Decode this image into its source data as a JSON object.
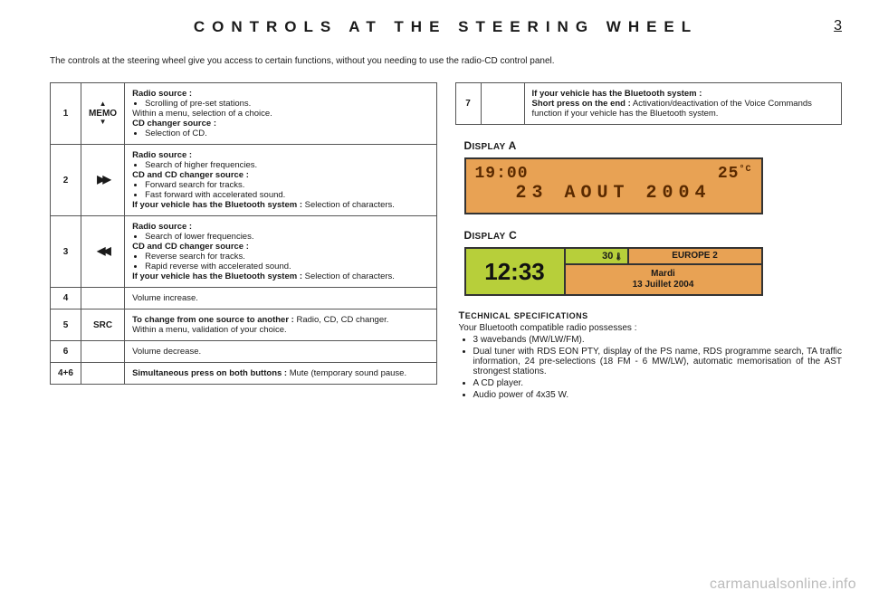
{
  "header": {
    "title": "CONTROLS AT THE STEERING WHEEL",
    "page_number": "3"
  },
  "intro": "The controls at the steering wheel give you access to certain functions, without you needing to use the radio-CD control panel.",
  "controls_left": [
    {
      "num": "1",
      "icon_top": "▲",
      "icon_mid": "MEMO",
      "icon_bot": "▼",
      "html": "<b>Radio source :</b><ul><li>Scrolling of pre-set stations.</li></ul>Within a menu, selection of a choice.<br><b>CD changer source :</b><ul><li>Selection of CD.</li></ul>"
    },
    {
      "num": "2",
      "icon_mid": "▶▶",
      "html": "<b>Radio source :</b><ul><li>Search of higher frequencies.</li></ul><b>CD and CD changer source :</b><ul><li>Forward search for tracks.</li><li>Fast forward with accelerated sound.</li></ul><b>If your vehicle has the Bluetooth system :</b> Selection of characters."
    },
    {
      "num": "3",
      "icon_mid": "◀◀",
      "html": "<b>Radio source :</b><ul><li>Search of lower frequencies.</li></ul><b>CD and CD changer source :</b><ul><li>Reverse search for tracks.</li><li>Rapid reverse with accelerated sound.</li></ul><b>If your vehicle has the Bluetooth system :</b> Selection of characters."
    },
    {
      "num": "4",
      "icon_mid": "",
      "html": "Volume increase."
    },
    {
      "num": "5",
      "icon_mid": "SRC",
      "html": "<b>To change from one source to another :</b> Radio, CD, CD changer.<br>Within a menu, validation of your choice."
    },
    {
      "num": "6",
      "icon_mid": "",
      "html": "Volume decrease."
    },
    {
      "num": "4+6",
      "icon_mid": "",
      "html": "<b>Simultaneous press on both buttons :</b> Mute (temporary sound pause."
    }
  ],
  "controls_right": [
    {
      "num": "7",
      "icon_mid": "",
      "html": "<b>If your vehicle has the Bluetooth system :</b><br><b>Short press on the end :</b> Activation/deactivation of the Voice Commands function if your vehicle has the Bluetooth system."
    }
  ],
  "display_a": {
    "title": "DISPLAY A",
    "time": "19:00",
    "temp": "25",
    "temp_unit": "°C",
    "date": "23 AOUT 2004",
    "bg_color": "#e8a254",
    "text_color": "#5a2a00"
  },
  "display_c": {
    "title": "DISPLAY C",
    "time": "12:33",
    "temp": "30",
    "temp_icon": "🌡",
    "station": "EUROPE  2",
    "day": "Mardi",
    "date": "13 Juillet 2004",
    "green": "#b7cf3a",
    "orange": "#e8a254"
  },
  "spec": {
    "title": "TECHNICAL SPECIFICATIONS",
    "intro": "Your Bluetooth compatible radio possesses :",
    "items": [
      "3 wavebands (MW/LW/FM).",
      "Dual tuner with RDS EON PTY, display of the PS name, RDS programme search, TA traffic information, 24 pre-selections (18 FM - 6 MW/LW), automatic memorisation of the AST strongest stations.",
      "A CD player.",
      "Audio power of 4x35 W."
    ]
  },
  "watermark": "carmanualsonline.info"
}
